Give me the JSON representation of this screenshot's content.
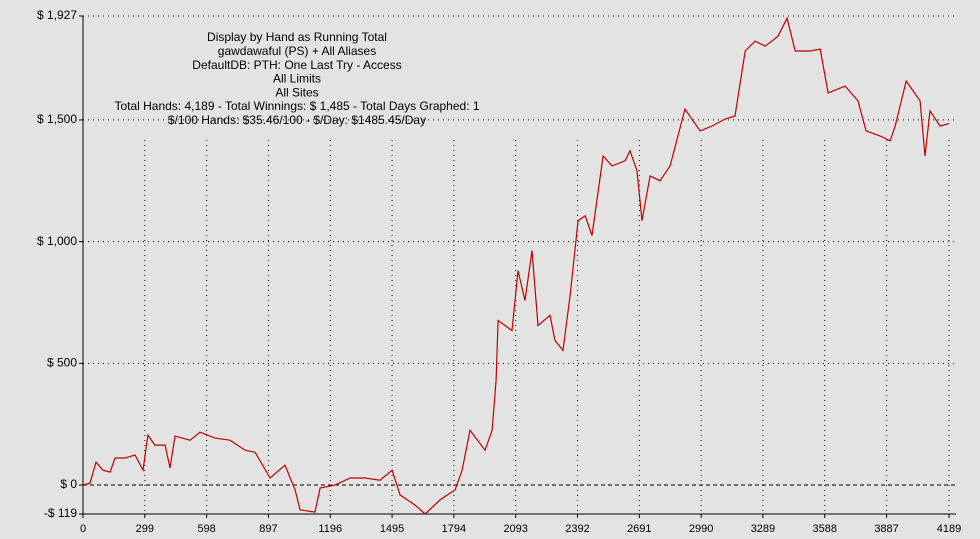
{
  "chart_data": {
    "type": "line",
    "annotations": [
      "Display by Hand as Running Total",
      "gawdawaful (PS) + All Aliases",
      "DefaultDB: PTH: One Last Try - Access",
      "All Limits",
      "All Sites",
      "Total Hands: 4,189 - Total Winnings: $ 1,485 - Total Days Graphed: 1",
      "$/100 Hands: $35.46/100 - $/Day: $1485.45/Day"
    ],
    "x": [
      0,
      34,
      63,
      97,
      131,
      155,
      203,
      252,
      290,
      314,
      348,
      397,
      421,
      445,
      518,
      566,
      639,
      711,
      784,
      832,
      905,
      977,
      1026,
      1050,
      1122,
      1147,
      1219,
      1292,
      1364,
      1437,
      1495,
      1534,
      1606,
      1655,
      1727,
      1800,
      1834,
      1872,
      1945,
      1979,
      1998,
      2008,
      2075,
      2104,
      2138,
      2172,
      2201,
      2259,
      2283,
      2322,
      2356,
      2395,
      2429,
      2462,
      2516,
      2559,
      2622,
      2646,
      2680,
      2704,
      2743,
      2791,
      2840,
      2912,
      2985,
      3043,
      3106,
      3154,
      3203,
      3251,
      3300,
      3362,
      3406,
      3445,
      3517,
      3566,
      3604,
      3687,
      3749,
      3788,
      3856,
      3904,
      3929,
      3982,
      4049,
      4073,
      4097,
      4146,
      4189
    ],
    "series": [
      {
        "name": "Running Total",
        "color": "#c00000",
        "values": [
          0,
          8,
          94,
          61,
          53,
          111,
          111,
          123,
          61,
          205,
          164,
          164,
          70,
          201,
          184,
          217,
          193,
          184,
          143,
          135,
          29,
          82,
          -20,
          -102,
          -111,
          -12,
          0,
          29,
          29,
          20,
          61,
          -41,
          -82,
          -119,
          -61,
          -20,
          61,
          225,
          143,
          225,
          430,
          676,
          635,
          881,
          758,
          963,
          656,
          697,
          594,
          553,
          779,
          1086,
          1106,
          1025,
          1352,
          1311,
          1332,
          1373,
          1291,
          1086,
          1270,
          1250,
          1311,
          1545,
          1455,
          1475,
          1504,
          1516,
          1783,
          1824,
          1803,
          1844,
          1918,
          1783,
          1783,
          1791,
          1611,
          1639,
          1578,
          1455,
          1434,
          1414,
          1475,
          1660,
          1578,
          1352,
          1537,
          1475,
          1485
        ]
      }
    ],
    "xlim": [
      0,
      4189
    ],
    "ylim": [
      -119,
      1927
    ],
    "xticks": [
      0,
      299,
      598,
      897,
      1196,
      1495,
      1794,
      2093,
      2392,
      2691,
      2990,
      3289,
      3588,
      3887,
      4189
    ],
    "yticks": [
      {
        "value": -119,
        "label": "-$ 119"
      },
      {
        "value": 0,
        "label": "$ 0"
      },
      {
        "value": 500,
        "label": "$ 500"
      },
      {
        "value": 1000,
        "label": "$ 1,000"
      },
      {
        "value": 1500,
        "label": "$ 1,500"
      },
      {
        "value": 1927,
        "label": "$ 1,927"
      }
    ],
    "grid": true
  }
}
